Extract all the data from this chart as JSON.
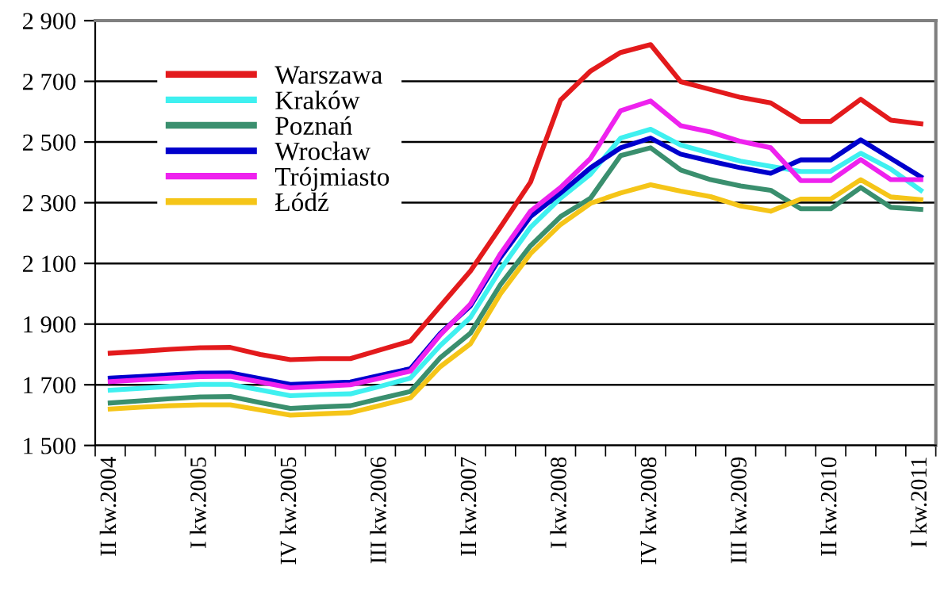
{
  "chart_data": {
    "type": "line",
    "categories": [
      "II kw.2004",
      null,
      null,
      "I kw.2005",
      null,
      null,
      "IV kw.2005",
      null,
      null,
      "III kw.2006",
      null,
      null,
      "II kw.2007",
      null,
      null,
      "I kw.2008",
      null,
      null,
      "IV kw.2008",
      null,
      null,
      "III kw.2009",
      null,
      null,
      "II kw.2010",
      null,
      null,
      "I kw.2011"
    ],
    "series": [
      {
        "name": "Warszawa",
        "color": "#e31a1c",
        "values": [
          1804,
          1810,
          1817,
          1822,
          1823,
          1800,
          1783,
          1786,
          1786,
          1815,
          1844,
          1960,
          2075,
          2220,
          2368,
          2638,
          2734,
          2795,
          2821,
          2699,
          2673,
          2647,
          2629,
          2568,
          2568,
          2641,
          2572,
          2560
        ]
      },
      {
        "name": "Kraków",
        "color": "#3ff0f0",
        "values": [
          1682,
          1688,
          1695,
          1701,
          1701,
          1683,
          1664,
          1668,
          1670,
          1695,
          1722,
          1830,
          1922,
          2080,
          2219,
          2315,
          2394,
          2513,
          2542,
          2490,
          2463,
          2437,
          2420,
          2403,
          2403,
          2463,
          2411,
          2341
        ]
      },
      {
        "name": "Poznań",
        "color": "#3a8f6e",
        "values": [
          1640,
          1647,
          1654,
          1660,
          1661,
          1641,
          1622,
          1627,
          1631,
          1655,
          1678,
          1790,
          1870,
          2030,
          2158,
          2254,
          2315,
          2455,
          2481,
          2408,
          2376,
          2355,
          2341,
          2280,
          2280,
          2350,
          2285,
          2278
        ]
      },
      {
        "name": "Wrocław",
        "color": "#0000cc",
        "values": [
          1722,
          1727,
          1733,
          1738,
          1739,
          1720,
          1701,
          1705,
          1709,
          1731,
          1753,
          1870,
          1960,
          2120,
          2254,
          2332,
          2415,
          2481,
          2513,
          2460,
          2437,
          2415,
          2397,
          2441,
          2441,
          2507,
          2446,
          2385
        ]
      },
      {
        "name": "Trójmiasto",
        "color": "#ee22ee",
        "values": [
          1710,
          1716,
          1722,
          1727,
          1728,
          1709,
          1690,
          1695,
          1700,
          1722,
          1745,
          1865,
          1966,
          2132,
          2272,
          2350,
          2446,
          2603,
          2635,
          2554,
          2533,
          2502,
          2481,
          2373,
          2373,
          2442,
          2376,
          2376
        ]
      },
      {
        "name": "Łódź",
        "color": "#f5c518",
        "values": [
          1620,
          1626,
          1631,
          1634,
          1634,
          1617,
          1600,
          1604,
          1608,
          1632,
          1657,
          1760,
          1835,
          2000,
          2132,
          2228,
          2298,
          2332,
          2359,
          2338,
          2320,
          2289,
          2272,
          2312,
          2312,
          2376,
          2319,
          2310
        ]
      }
    ],
    "ylim": [
      1500,
      2900
    ],
    "yticks": [
      {
        "value": 1500,
        "label": "1 500"
      },
      {
        "value": 1700,
        "label": "1 700"
      },
      {
        "value": 1900,
        "label": "1 900"
      },
      {
        "value": 2100,
        "label": "2 100"
      },
      {
        "value": 2300,
        "label": "2 300"
      },
      {
        "value": 2500,
        "label": "2 500"
      },
      {
        "value": 2700,
        "label": "2 700"
      },
      {
        "value": 2900,
        "label": "2 900"
      }
    ],
    "grid": "y",
    "legend": "top left",
    "marker": "none",
    "line_style": "solid"
  }
}
